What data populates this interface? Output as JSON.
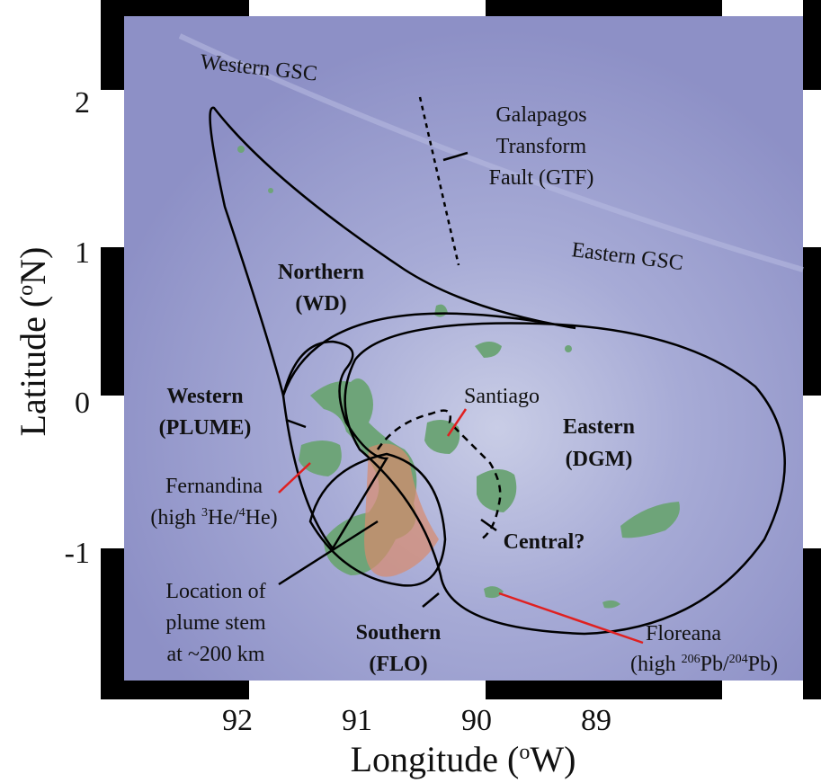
{
  "map": {
    "x_axis": {
      "title": [
        "Longitude (",
        "o",
        "W)"
      ],
      "ticks": [
        92,
        91,
        90,
        89
      ]
    },
    "y_axis": {
      "title": [
        "Latitude (",
        "o",
        "N)"
      ],
      "ticks": [
        2,
        1,
        0,
        -1
      ]
    },
    "labels": {
      "western_gsc": "Western GSC",
      "eastern_gsc": "Eastern GSC",
      "gtf": [
        "Galapagos",
        "Transform",
        "Fault (GTF)"
      ],
      "northern": [
        "Northern",
        "(WD)"
      ],
      "western": [
        "Western",
        "(PLUME)"
      ],
      "eastern": [
        "Eastern",
        "(DGM)"
      ],
      "southern": [
        "Southern",
        "(FLO)"
      ],
      "central": "Central?",
      "santiago": "Santiago",
      "fernandina": [
        "Fernandina",
        [
          "(high ",
          "3",
          "He/",
          "4",
          "He)"
        ]
      ],
      "plume_stem": [
        "Location of",
        "plume stem",
        "at ~200 km"
      ],
      "floreana": [
        "Floreana",
        [
          "(high ",
          "206",
          "Pb/",
          "204",
          "Pb)"
        ]
      ]
    }
  }
}
